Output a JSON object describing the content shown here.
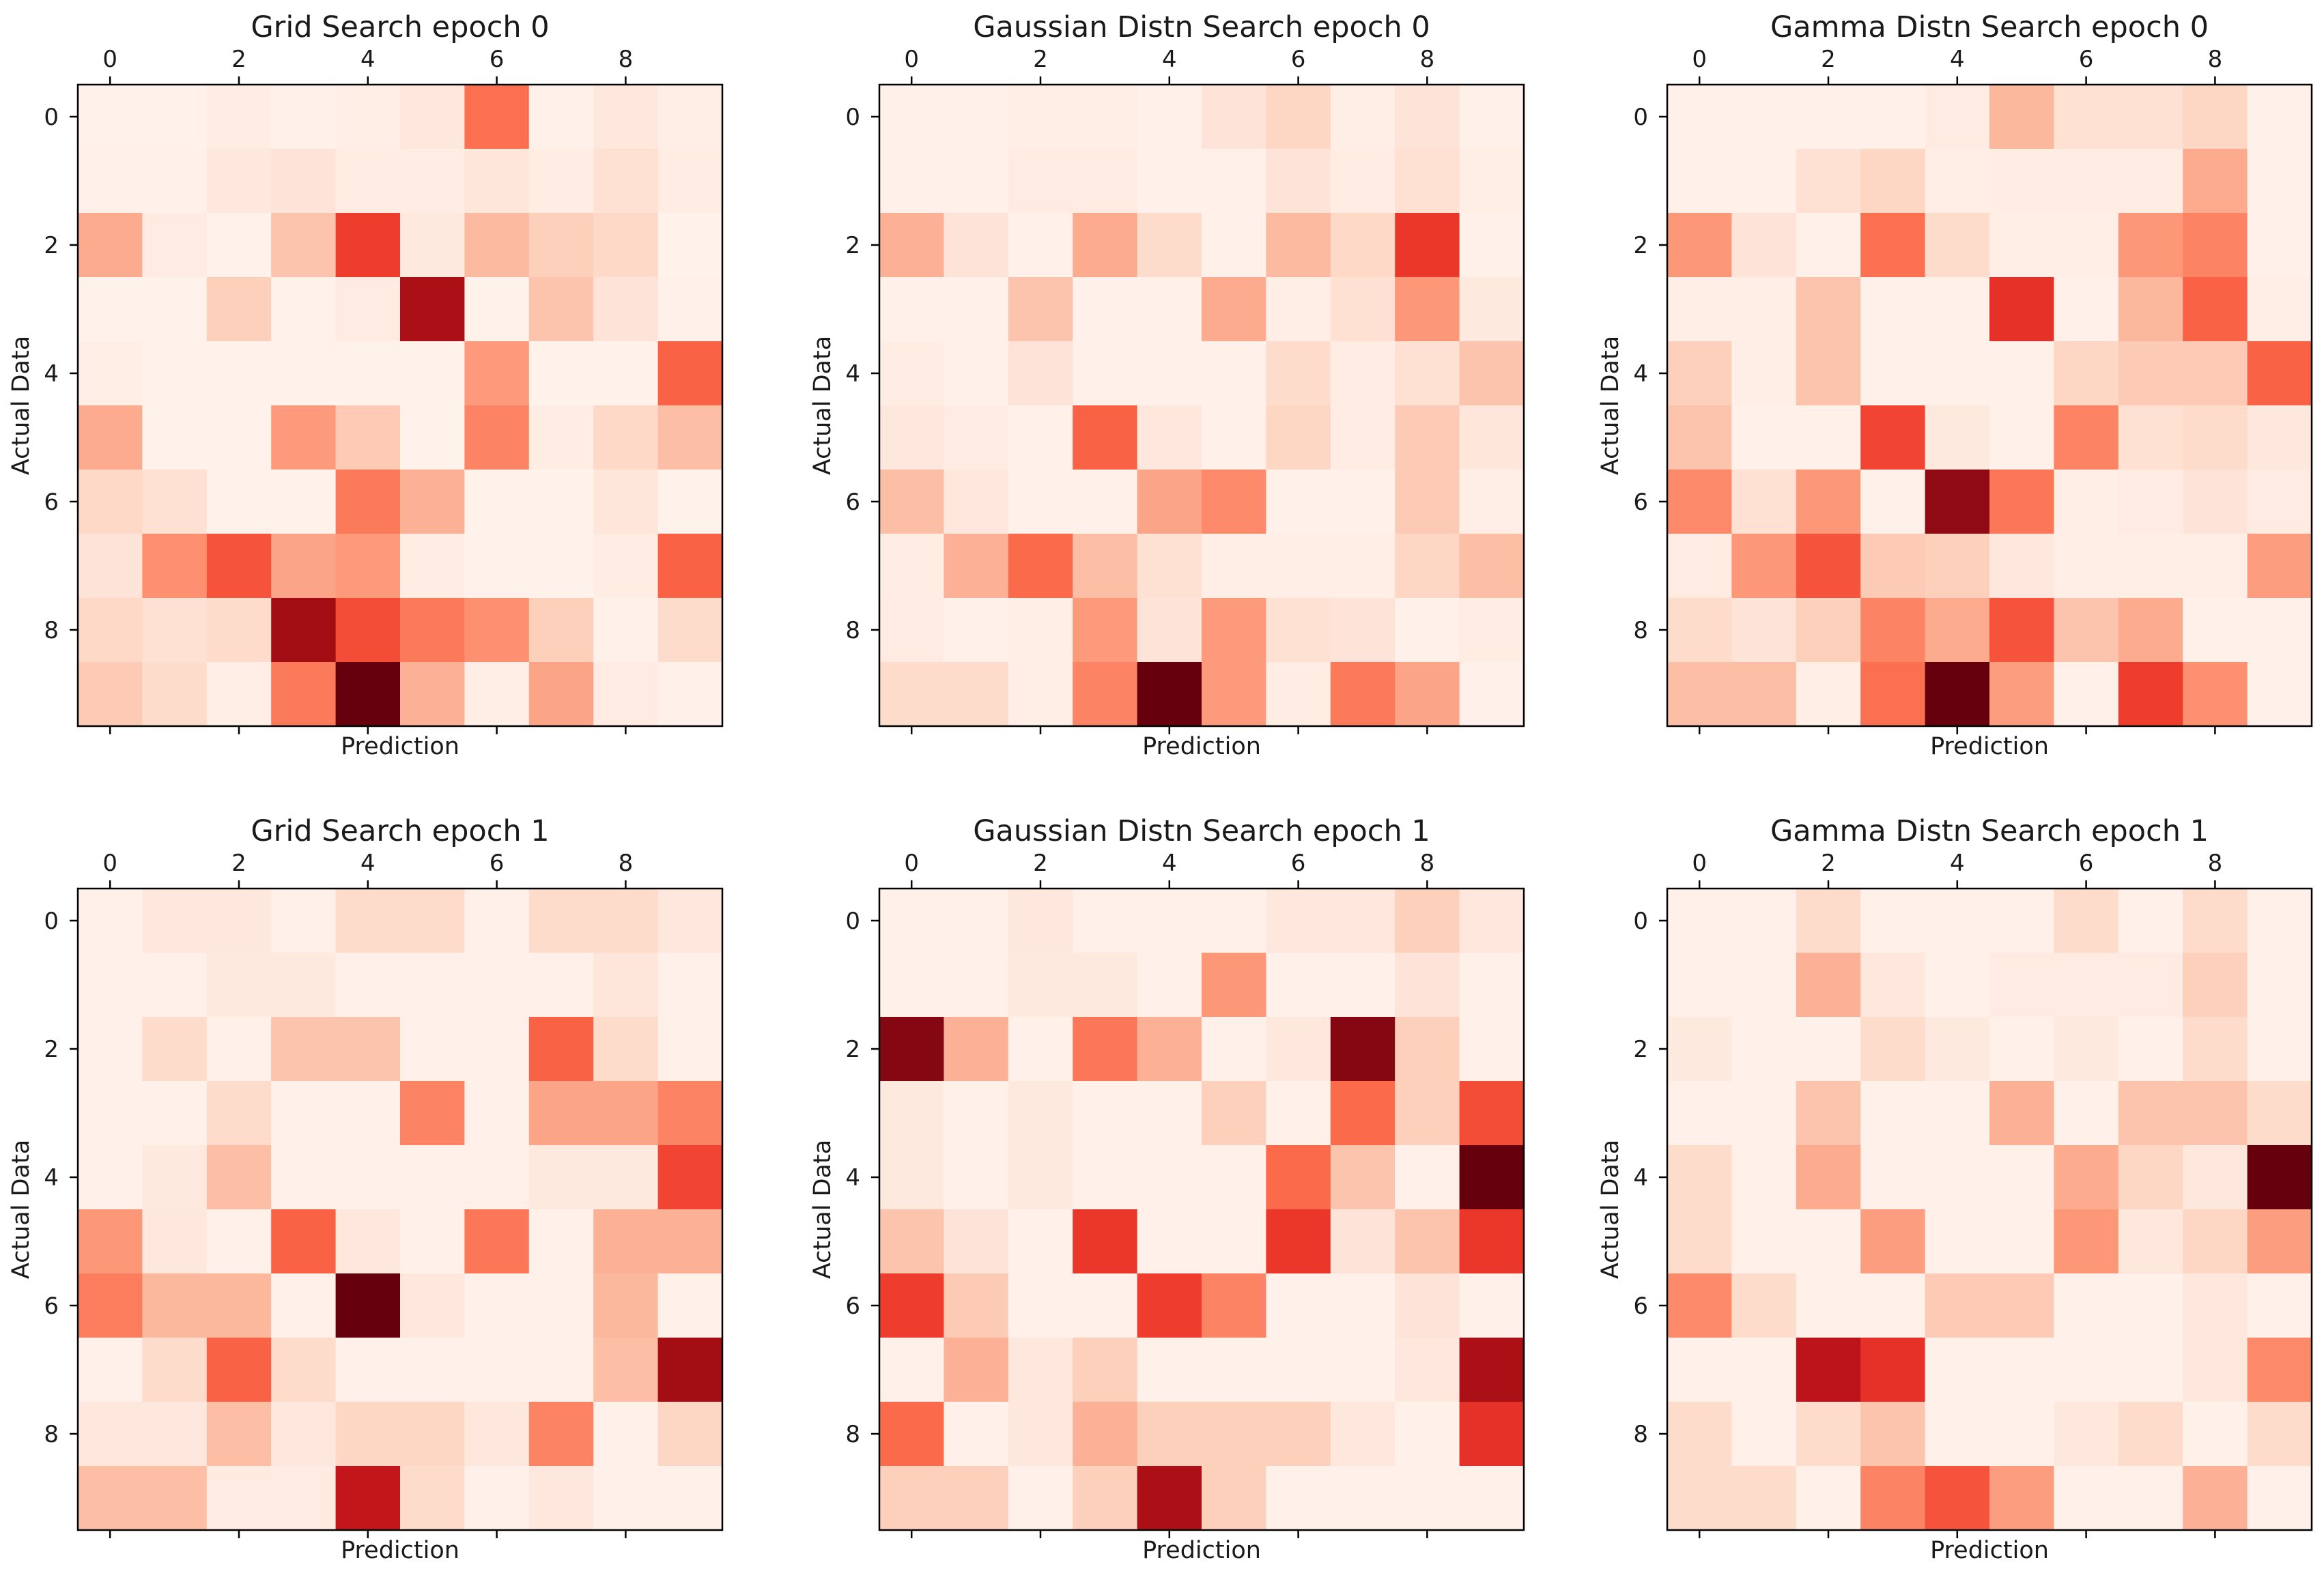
{
  "figure": {
    "x_tick_labels": [
      "0",
      "2",
      "4",
      "6",
      "8"
    ],
    "y_tick_labels": [
      "0",
      "2",
      "4",
      "6",
      "8"
    ],
    "xlabel": "Prediction",
    "ylabel": "Actual Data",
    "colormap": "Reds",
    "colormap_stops": [
      "#fff5f0",
      "#fee0d2",
      "#fcbba1",
      "#fc9272",
      "#fb6a4a",
      "#ef3b2c",
      "#cb181d",
      "#a50f15",
      "#67000d"
    ]
  },
  "chart_data": [
    {
      "type": "heatmap",
      "title": "Grid Search epoch 0",
      "xlabel": "Prediction",
      "ylabel": "Actual Data",
      "x_ticks": [
        0,
        2,
        4,
        6,
        8
      ],
      "y_ticks": [
        0,
        2,
        4,
        6,
        8
      ],
      "values": [
        [
          0.02,
          0.02,
          0.05,
          0.03,
          0.04,
          0.08,
          0.48,
          0.03,
          0.08,
          0.04
        ],
        [
          0.03,
          0.03,
          0.08,
          0.1,
          0.05,
          0.05,
          0.09,
          0.05,
          0.12,
          0.05
        ],
        [
          0.3,
          0.06,
          0.02,
          0.22,
          0.62,
          0.07,
          0.25,
          0.18,
          0.15,
          0.02
        ],
        [
          0.02,
          0.02,
          0.18,
          0.02,
          0.06,
          0.86,
          0.02,
          0.22,
          0.1,
          0.03
        ],
        [
          0.04,
          0.02,
          0.02,
          0.02,
          0.02,
          0.02,
          0.35,
          0.02,
          0.02,
          0.52
        ],
        [
          0.3,
          0.02,
          0.02,
          0.35,
          0.2,
          0.02,
          0.42,
          0.05,
          0.15,
          0.24
        ],
        [
          0.15,
          0.12,
          0.02,
          0.02,
          0.45,
          0.28,
          0.02,
          0.02,
          0.09,
          0.02
        ],
        [
          0.1,
          0.38,
          0.56,
          0.32,
          0.35,
          0.05,
          0.02,
          0.02,
          0.05,
          0.52
        ],
        [
          0.15,
          0.12,
          0.14,
          0.88,
          0.58,
          0.45,
          0.38,
          0.18,
          0.03,
          0.14
        ],
        [
          0.2,
          0.14,
          0.04,
          0.45,
          1.0,
          0.28,
          0.04,
          0.32,
          0.06,
          0.03
        ]
      ]
    },
    {
      "type": "heatmap",
      "title": "Gaussian Distn Search epoch 0",
      "xlabel": "Prediction",
      "ylabel": "Actual Data",
      "x_ticks": [
        0,
        2,
        4,
        6,
        8
      ],
      "y_ticks": [
        0,
        2,
        4,
        6,
        8
      ],
      "values": [
        [
          0.03,
          0.03,
          0.04,
          0.04,
          0.03,
          0.1,
          0.16,
          0.04,
          0.1,
          0.03
        ],
        [
          0.03,
          0.03,
          0.06,
          0.06,
          0.03,
          0.03,
          0.1,
          0.05,
          0.12,
          0.04
        ],
        [
          0.28,
          0.1,
          0.03,
          0.3,
          0.14,
          0.03,
          0.25,
          0.15,
          0.64,
          0.03
        ],
        [
          0.03,
          0.03,
          0.22,
          0.03,
          0.03,
          0.3,
          0.04,
          0.12,
          0.36,
          0.07
        ],
        [
          0.05,
          0.03,
          0.1,
          0.03,
          0.03,
          0.03,
          0.14,
          0.05,
          0.12,
          0.22
        ],
        [
          0.08,
          0.06,
          0.03,
          0.52,
          0.08,
          0.03,
          0.16,
          0.05,
          0.2,
          0.09
        ],
        [
          0.24,
          0.08,
          0.03,
          0.03,
          0.32,
          0.4,
          0.03,
          0.03,
          0.2,
          0.04
        ],
        [
          0.05,
          0.28,
          0.5,
          0.24,
          0.12,
          0.04,
          0.04,
          0.04,
          0.16,
          0.24
        ],
        [
          0.06,
          0.03,
          0.04,
          0.35,
          0.1,
          0.35,
          0.12,
          0.1,
          0.03,
          0.05
        ],
        [
          0.14,
          0.14,
          0.04,
          0.42,
          1.0,
          0.35,
          0.05,
          0.45,
          0.32,
          0.03
        ]
      ]
    },
    {
      "type": "heatmap",
      "title": "Gamma Distn Search epoch 0",
      "xlabel": "Prediction",
      "ylabel": "Actual Data",
      "x_ticks": [
        0,
        2,
        4,
        6,
        8
      ],
      "y_ticks": [
        0,
        2,
        4,
        6,
        8
      ],
      "values": [
        [
          0.03,
          0.03,
          0.03,
          0.03,
          0.06,
          0.26,
          0.12,
          0.12,
          0.16,
          0.03
        ],
        [
          0.03,
          0.03,
          0.12,
          0.16,
          0.04,
          0.05,
          0.05,
          0.05,
          0.3,
          0.03
        ],
        [
          0.36,
          0.1,
          0.03,
          0.48,
          0.14,
          0.04,
          0.04,
          0.36,
          0.42,
          0.03
        ],
        [
          0.04,
          0.04,
          0.22,
          0.03,
          0.03,
          0.66,
          0.03,
          0.26,
          0.52,
          0.04
        ],
        [
          0.18,
          0.04,
          0.22,
          0.03,
          0.03,
          0.03,
          0.16,
          0.2,
          0.2,
          0.52
        ],
        [
          0.22,
          0.03,
          0.03,
          0.6,
          0.07,
          0.03,
          0.42,
          0.12,
          0.14,
          0.08
        ],
        [
          0.4,
          0.12,
          0.36,
          0.03,
          0.92,
          0.46,
          0.04,
          0.06,
          0.1,
          0.06
        ],
        [
          0.06,
          0.36,
          0.56,
          0.2,
          0.18,
          0.08,
          0.04,
          0.04,
          0.04,
          0.34
        ],
        [
          0.14,
          0.1,
          0.18,
          0.42,
          0.3,
          0.56,
          0.22,
          0.3,
          0.03,
          0.03
        ],
        [
          0.24,
          0.24,
          0.04,
          0.48,
          1.0,
          0.34,
          0.03,
          0.62,
          0.38,
          0.03
        ]
      ]
    },
    {
      "type": "heatmap",
      "title": "Grid Search epoch 1",
      "xlabel": "Prediction",
      "ylabel": "Actual Data",
      "x_ticks": [
        0,
        2,
        4,
        6,
        8
      ],
      "y_ticks": [
        0,
        2,
        4,
        6,
        8
      ],
      "values": [
        [
          0.03,
          0.08,
          0.08,
          0.03,
          0.14,
          0.14,
          0.03,
          0.14,
          0.14,
          0.08
        ],
        [
          0.03,
          0.03,
          0.07,
          0.07,
          0.03,
          0.03,
          0.03,
          0.03,
          0.09,
          0.03
        ],
        [
          0.03,
          0.14,
          0.03,
          0.22,
          0.22,
          0.03,
          0.03,
          0.52,
          0.14,
          0.03
        ],
        [
          0.03,
          0.03,
          0.14,
          0.03,
          0.03,
          0.42,
          0.03,
          0.32,
          0.32,
          0.42
        ],
        [
          0.03,
          0.07,
          0.24,
          0.03,
          0.03,
          0.03,
          0.03,
          0.07,
          0.07,
          0.6
        ],
        [
          0.36,
          0.08,
          0.03,
          0.52,
          0.08,
          0.03,
          0.46,
          0.03,
          0.28,
          0.28
        ],
        [
          0.44,
          0.26,
          0.26,
          0.03,
          1.0,
          0.08,
          0.03,
          0.03,
          0.26,
          0.03
        ],
        [
          0.03,
          0.14,
          0.52,
          0.14,
          0.03,
          0.03,
          0.03,
          0.03,
          0.24,
          0.88
        ],
        [
          0.08,
          0.08,
          0.24,
          0.08,
          0.16,
          0.16,
          0.08,
          0.42,
          0.03,
          0.16
        ],
        [
          0.24,
          0.24,
          0.06,
          0.06,
          0.78,
          0.14,
          0.03,
          0.08,
          0.03,
          0.03
        ]
      ]
    },
    {
      "type": "heatmap",
      "title": "Gaussian Distn Search epoch 1",
      "xlabel": "Prediction",
      "ylabel": "Actual Data",
      "x_ticks": [
        0,
        2,
        4,
        6,
        8
      ],
      "y_ticks": [
        0,
        2,
        4,
        6,
        8
      ],
      "values": [
        [
          0.03,
          0.03,
          0.08,
          0.03,
          0.03,
          0.03,
          0.08,
          0.08,
          0.18,
          0.08
        ],
        [
          0.03,
          0.03,
          0.07,
          0.07,
          0.03,
          0.36,
          0.03,
          0.03,
          0.1,
          0.03
        ],
        [
          0.94,
          0.28,
          0.03,
          0.46,
          0.28,
          0.03,
          0.08,
          0.94,
          0.18,
          0.03
        ],
        [
          0.07,
          0.03,
          0.07,
          0.03,
          0.03,
          0.18,
          0.03,
          0.5,
          0.18,
          0.58
        ],
        [
          0.07,
          0.03,
          0.07,
          0.03,
          0.03,
          0.03,
          0.5,
          0.22,
          0.03,
          1.0
        ],
        [
          0.22,
          0.1,
          0.03,
          0.64,
          0.03,
          0.03,
          0.64,
          0.1,
          0.22,
          0.64
        ],
        [
          0.62,
          0.2,
          0.03,
          0.03,
          0.62,
          0.42,
          0.03,
          0.03,
          0.1,
          0.03
        ],
        [
          0.03,
          0.28,
          0.08,
          0.18,
          0.03,
          0.03,
          0.03,
          0.03,
          0.08,
          0.86
        ],
        [
          0.5,
          0.03,
          0.08,
          0.28,
          0.18,
          0.18,
          0.18,
          0.08,
          0.03,
          0.66
        ],
        [
          0.18,
          0.18,
          0.03,
          0.18,
          0.86,
          0.18,
          0.03,
          0.03,
          0.03,
          0.03
        ]
      ]
    },
    {
      "type": "heatmap",
      "title": "Gamma Distn Search epoch 1",
      "xlabel": "Prediction",
      "ylabel": "Actual Data",
      "x_ticks": [
        0,
        2,
        4,
        6,
        8
      ],
      "y_ticks": [
        0,
        2,
        4,
        6,
        8
      ],
      "values": [
        [
          0.03,
          0.03,
          0.14,
          0.03,
          0.03,
          0.03,
          0.14,
          0.03,
          0.14,
          0.03
        ],
        [
          0.03,
          0.03,
          0.28,
          0.08,
          0.03,
          0.06,
          0.06,
          0.06,
          0.18,
          0.03
        ],
        [
          0.07,
          0.03,
          0.03,
          0.14,
          0.07,
          0.03,
          0.07,
          0.03,
          0.14,
          0.03
        ],
        [
          0.03,
          0.03,
          0.22,
          0.03,
          0.03,
          0.28,
          0.03,
          0.22,
          0.22,
          0.14
        ],
        [
          0.14,
          0.03,
          0.3,
          0.03,
          0.03,
          0.03,
          0.3,
          0.16,
          0.08,
          1.0
        ],
        [
          0.14,
          0.03,
          0.03,
          0.34,
          0.03,
          0.03,
          0.36,
          0.08,
          0.16,
          0.34
        ],
        [
          0.4,
          0.14,
          0.03,
          0.03,
          0.2,
          0.2,
          0.03,
          0.03,
          0.08,
          0.03
        ],
        [
          0.03,
          0.03,
          0.8,
          0.66,
          0.03,
          0.03,
          0.03,
          0.03,
          0.08,
          0.4
        ],
        [
          0.14,
          0.03,
          0.14,
          0.22,
          0.03,
          0.03,
          0.08,
          0.14,
          0.03,
          0.14
        ],
        [
          0.14,
          0.14,
          0.03,
          0.42,
          0.56,
          0.34,
          0.03,
          0.03,
          0.28,
          0.03
        ]
      ]
    }
  ]
}
